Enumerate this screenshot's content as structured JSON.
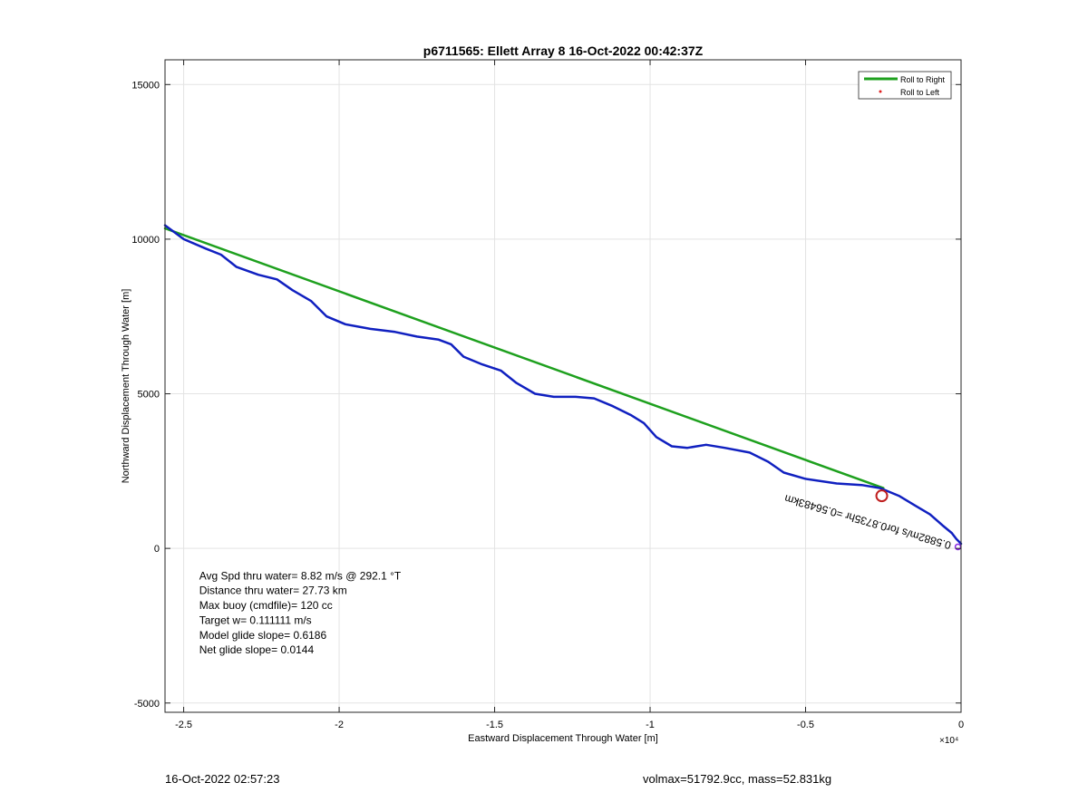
{
  "chart_data": {
    "type": "line",
    "title": "p6711565: Ellett Array 8 16-Oct-2022 00:42:37Z",
    "xlabel": "Eastward Displacement Through Water [m]",
    "ylabel": "Northward Displacement Through Water [m]",
    "xlim": [
      -25600,
      0
    ],
    "ylim": [
      -5300,
      15800
    ],
    "x_exponent_label": "×10⁴",
    "xticks": [
      -25000,
      -20000,
      -15000,
      -10000,
      -5000,
      0
    ],
    "xtick_labels": [
      "-2.5",
      "-2",
      "-1.5",
      "-1",
      "-0.5",
      "0"
    ],
    "yticks": [
      -5000,
      0,
      5000,
      10000,
      15000
    ],
    "ytick_labels": [
      "-5000",
      "0",
      "5000",
      "10000",
      "15000"
    ],
    "grid": true,
    "legend": {
      "placement": "top-right",
      "entries": [
        {
          "label": "Roll to Right",
          "color": "#1ea01e",
          "marker": "line"
        },
        {
          "label": "Roll to Left",
          "color": "#e02020",
          "marker": "dot"
        }
      ]
    },
    "series": [
      {
        "name": "Roll to Right",
        "color": "#1ea01e",
        "points": [
          [
            -25600,
            10350
          ],
          [
            -2500,
            1950
          ]
        ]
      },
      {
        "color": "#1020c0",
        "points": [
          [
            -25600,
            10450
          ],
          [
            -25000,
            10000
          ],
          [
            -24300,
            9700
          ],
          [
            -23800,
            9500
          ],
          [
            -23300,
            9100
          ],
          [
            -22600,
            8850
          ],
          [
            -22000,
            8700
          ],
          [
            -21500,
            8350
          ],
          [
            -20900,
            8000
          ],
          [
            -20400,
            7500
          ],
          [
            -19800,
            7250
          ],
          [
            -19000,
            7100
          ],
          [
            -18200,
            7000
          ],
          [
            -17500,
            6850
          ],
          [
            -16800,
            6750
          ],
          [
            -16400,
            6600
          ],
          [
            -16000,
            6200
          ],
          [
            -15400,
            5950
          ],
          [
            -14800,
            5750
          ],
          [
            -14300,
            5350
          ],
          [
            -13700,
            5000
          ],
          [
            -13100,
            4900
          ],
          [
            -12400,
            4900
          ],
          [
            -11800,
            4850
          ],
          [
            -11200,
            4600
          ],
          [
            -10600,
            4300
          ],
          [
            -10200,
            4050
          ],
          [
            -9800,
            3600
          ],
          [
            -9300,
            3300
          ],
          [
            -8800,
            3250
          ],
          [
            -8200,
            3350
          ],
          [
            -7600,
            3250
          ],
          [
            -6800,
            3100
          ],
          [
            -6200,
            2800
          ],
          [
            -5700,
            2450
          ],
          [
            -5000,
            2250
          ],
          [
            -4000,
            2100
          ],
          [
            -3200,
            2050
          ],
          [
            -2600,
            1950
          ],
          [
            -2000,
            1700
          ],
          [
            -1500,
            1400
          ],
          [
            -1000,
            1100
          ],
          [
            -600,
            750
          ],
          [
            -300,
            500
          ],
          [
            -150,
            300
          ],
          [
            0,
            150
          ]
        ]
      }
    ],
    "markers": [
      {
        "type": "open-circle",
        "x": -2550,
        "y": 1700,
        "color": "#c02020"
      },
      {
        "type": "open-circle",
        "x": -100,
        "y": 50,
        "color": "#8a2be2"
      }
    ],
    "annotations": [
      {
        "text": "Avg Spd thru water=  8.82 m/s @ 292.1 °T",
        "x": -24500,
        "y": -1000
      },
      {
        "text": "Distance thru water= 27.73 km",
        "x": -24500,
        "y": -1480
      },
      {
        "text": "Max buoy (cmdfile)= 120 cc",
        "x": -24500,
        "y": -1960
      },
      {
        "text": "Target w= 0.111111 m/s",
        "x": -24500,
        "y": -2440
      },
      {
        "text": "Model glide slope= 0.6186",
        "x": -24500,
        "y": -2920
      },
      {
        "text": "Net glide slope= 0.0144",
        "x": -24500,
        "y": -3400
      }
    ],
    "rotated_label": {
      "text": "0.5882m/s for0.8735hr =0.56483km",
      "x": -300,
      "y": 200,
      "rotation_deg": 196
    }
  },
  "footer": {
    "timestamp": "16-Oct-2022 02:57:23",
    "summary": "volmax=51792.9cc, mass=52.831kg"
  }
}
